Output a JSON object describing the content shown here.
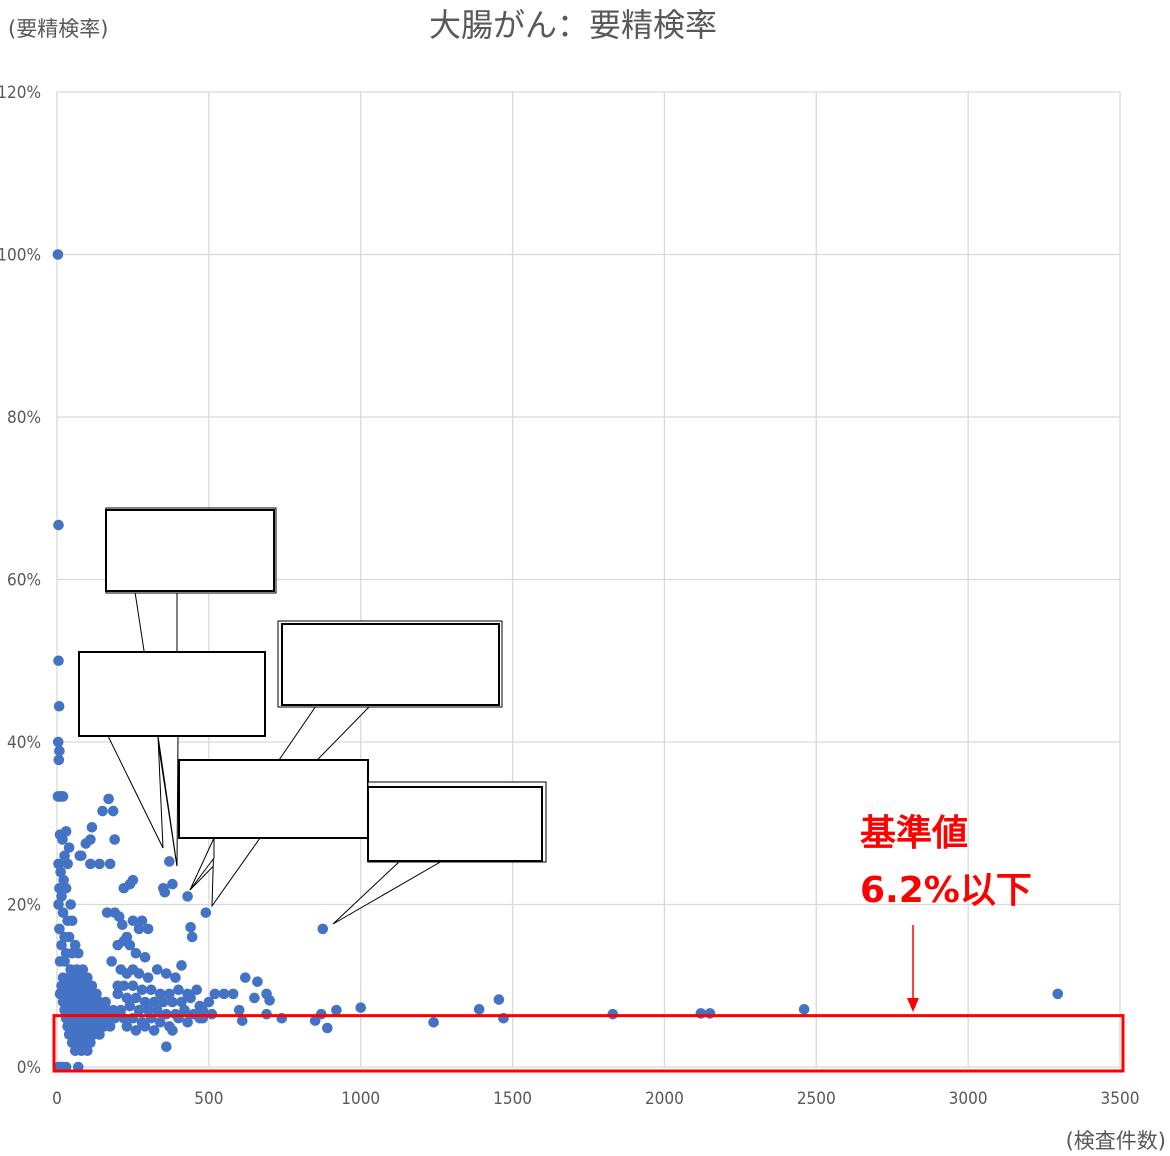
{
  "chart_data": {
    "type": "scatter",
    "title": "大腸がん：要精検率",
    "ylabel": "(要精検率)",
    "xlabel": "(検査件数)",
    "xlim": [
      0,
      3500
    ],
    "ylim": [
      0,
      1.2
    ],
    "x_ticks": [
      "0",
      "500",
      "1000",
      "1500",
      "2000",
      "2500",
      "3000",
      "3500"
    ],
    "y_ticks": [
      "0%",
      "20%",
      "40%",
      "60%",
      "80%",
      "100%",
      "120%"
    ],
    "grid": true,
    "marker_color": "#4472C4",
    "reference": {
      "label_line1": "基準値",
      "label_line2": "6.2%以下",
      "value": 0.062,
      "color": "#FF0000"
    },
    "points": [
      [
        3,
        1.0
      ],
      [
        5,
        0.667
      ],
      [
        5,
        0.5
      ],
      [
        7,
        0.444
      ],
      [
        4,
        0.4
      ],
      [
        8,
        0.389
      ],
      [
        6,
        0.378
      ],
      [
        3,
        0.333
      ],
      [
        10,
        0.333
      ],
      [
        15,
        0.333
      ],
      [
        20,
        0.333
      ],
      [
        10,
        0.286
      ],
      [
        18,
        0.28
      ],
      [
        30,
        0.29
      ],
      [
        40,
        0.27
      ],
      [
        25,
        0.26
      ],
      [
        35,
        0.25
      ],
      [
        5,
        0.25
      ],
      [
        12,
        0.24
      ],
      [
        22,
        0.23
      ],
      [
        8,
        0.22
      ],
      [
        30,
        0.22
      ],
      [
        15,
        0.21
      ],
      [
        45,
        0.2
      ],
      [
        5,
        0.2
      ],
      [
        20,
        0.19
      ],
      [
        35,
        0.18
      ],
      [
        50,
        0.18
      ],
      [
        8,
        0.17
      ],
      [
        25,
        0.16
      ],
      [
        40,
        0.16
      ],
      [
        60,
        0.15
      ],
      [
        15,
        0.15
      ],
      [
        30,
        0.14
      ],
      [
        50,
        0.14
      ],
      [
        70,
        0.14
      ],
      [
        10,
        0.13
      ],
      [
        25,
        0.13
      ],
      [
        45,
        0.12
      ],
      [
        65,
        0.12
      ],
      [
        85,
        0.12
      ],
      [
        20,
        0.11
      ],
      [
        40,
        0.11
      ],
      [
        60,
        0.11
      ],
      [
        80,
        0.11
      ],
      [
        100,
        0.11
      ],
      [
        15,
        0.1
      ],
      [
        35,
        0.1
      ],
      [
        55,
        0.1
      ],
      [
        75,
        0.1
      ],
      [
        95,
        0.1
      ],
      [
        115,
        0.1
      ],
      [
        10,
        0.09
      ],
      [
        30,
        0.09
      ],
      [
        50,
        0.09
      ],
      [
        70,
        0.09
      ],
      [
        90,
        0.09
      ],
      [
        110,
        0.09
      ],
      [
        130,
        0.09
      ],
      [
        20,
        0.08
      ],
      [
        40,
        0.08
      ],
      [
        60,
        0.08
      ],
      [
        80,
        0.08
      ],
      [
        100,
        0.08
      ],
      [
        120,
        0.08
      ],
      [
        140,
        0.08
      ],
      [
        160,
        0.08
      ],
      [
        25,
        0.07
      ],
      [
        45,
        0.07
      ],
      [
        65,
        0.07
      ],
      [
        85,
        0.07
      ],
      [
        105,
        0.07
      ],
      [
        125,
        0.07
      ],
      [
        145,
        0.07
      ],
      [
        165,
        0.07
      ],
      [
        185,
        0.07
      ],
      [
        30,
        0.06
      ],
      [
        50,
        0.06
      ],
      [
        70,
        0.06
      ],
      [
        90,
        0.06
      ],
      [
        110,
        0.06
      ],
      [
        130,
        0.06
      ],
      [
        150,
        0.06
      ],
      [
        170,
        0.06
      ],
      [
        190,
        0.06
      ],
      [
        35,
        0.05
      ],
      [
        55,
        0.05
      ],
      [
        75,
        0.05
      ],
      [
        95,
        0.05
      ],
      [
        115,
        0.05
      ],
      [
        135,
        0.05
      ],
      [
        155,
        0.05
      ],
      [
        175,
        0.05
      ],
      [
        40,
        0.04
      ],
      [
        60,
        0.04
      ],
      [
        80,
        0.04
      ],
      [
        100,
        0.04
      ],
      [
        120,
        0.04
      ],
      [
        140,
        0.04
      ],
      [
        50,
        0.03
      ],
      [
        70,
        0.03
      ],
      [
        90,
        0.03
      ],
      [
        110,
        0.03
      ],
      [
        60,
        0.02
      ],
      [
        80,
        0.02
      ],
      [
        100,
        0.02
      ],
      [
        20,
        0.0
      ],
      [
        10,
        0.0
      ],
      [
        30,
        0.0
      ],
      [
        70,
        0.0
      ],
      [
        5,
        0.0
      ],
      [
        80,
        0.26
      ],
      [
        95,
        0.275
      ],
      [
        110,
        0.28
      ],
      [
        115,
        0.295
      ],
      [
        150,
        0.315
      ],
      [
        170,
        0.33
      ],
      [
        185,
        0.315
      ],
      [
        190,
        0.28
      ],
      [
        175,
        0.25
      ],
      [
        140,
        0.25
      ],
      [
        110,
        0.25
      ],
      [
        75,
        0.26
      ],
      [
        165,
        0.19
      ],
      [
        190,
        0.19
      ],
      [
        205,
        0.185
      ],
      [
        215,
        0.175
      ],
      [
        230,
        0.16
      ],
      [
        250,
        0.18
      ],
      [
        270,
        0.17
      ],
      [
        280,
        0.18
      ],
      [
        300,
        0.17
      ],
      [
        220,
        0.22
      ],
      [
        240,
        0.225
      ],
      [
        250,
        0.23
      ],
      [
        350,
        0.22
      ],
      [
        355,
        0.215
      ],
      [
        380,
        0.225
      ],
      [
        370,
        0.253
      ],
      [
        430,
        0.21
      ],
      [
        440,
        0.172
      ],
      [
        445,
        0.16
      ],
      [
        490,
        0.19
      ],
      [
        875,
        0.17
      ],
      [
        200,
        0.15
      ],
      [
        220,
        0.155
      ],
      [
        240,
        0.15
      ],
      [
        260,
        0.14
      ],
      [
        290,
        0.135
      ],
      [
        180,
        0.13
      ],
      [
        210,
        0.12
      ],
      [
        230,
        0.115
      ],
      [
        250,
        0.12
      ],
      [
        270,
        0.115
      ],
      [
        300,
        0.11
      ],
      [
        330,
        0.12
      ],
      [
        360,
        0.115
      ],
      [
        390,
        0.11
      ],
      [
        410,
        0.125
      ],
      [
        200,
        0.1
      ],
      [
        220,
        0.1
      ],
      [
        250,
        0.1
      ],
      [
        280,
        0.095
      ],
      [
        310,
        0.095
      ],
      [
        340,
        0.09
      ],
      [
        370,
        0.09
      ],
      [
        400,
        0.095
      ],
      [
        430,
        0.09
      ],
      [
        460,
        0.095
      ],
      [
        200,
        0.09
      ],
      [
        230,
        0.085
      ],
      [
        260,
        0.085
      ],
      [
        290,
        0.08
      ],
      [
        320,
        0.08
      ],
      [
        350,
        0.08
      ],
      [
        380,
        0.08
      ],
      [
        410,
        0.08
      ],
      [
        440,
        0.085
      ],
      [
        470,
        0.075
      ],
      [
        500,
        0.08
      ],
      [
        210,
        0.07
      ],
      [
        240,
        0.075
      ],
      [
        270,
        0.07
      ],
      [
        300,
        0.07
      ],
      [
        330,
        0.07
      ],
      [
        360,
        0.065
      ],
      [
        390,
        0.065
      ],
      [
        420,
        0.07
      ],
      [
        450,
        0.065
      ],
      [
        480,
        0.07
      ],
      [
        220,
        0.06
      ],
      [
        250,
        0.06
      ],
      [
        280,
        0.055
      ],
      [
        310,
        0.06
      ],
      [
        340,
        0.055
      ],
      [
        370,
        0.05
      ],
      [
        400,
        0.06
      ],
      [
        430,
        0.055
      ],
      [
        470,
        0.06
      ],
      [
        510,
        0.065
      ],
      [
        230,
        0.05
      ],
      [
        260,
        0.045
      ],
      [
        290,
        0.05
      ],
      [
        320,
        0.045
      ],
      [
        380,
        0.045
      ],
      [
        360,
        0.025
      ],
      [
        480,
        0.06
      ],
      [
        520,
        0.09
      ],
      [
        550,
        0.09
      ],
      [
        580,
        0.09
      ],
      [
        620,
        0.11
      ],
      [
        660,
        0.105
      ],
      [
        690,
        0.09
      ],
      [
        700,
        0.082
      ],
      [
        650,
        0.085
      ],
      [
        600,
        0.07
      ],
      [
        690,
        0.065
      ],
      [
        740,
        0.06
      ],
      [
        610,
        0.057
      ],
      [
        850,
        0.057
      ],
      [
        870,
        0.065
      ],
      [
        890,
        0.048
      ],
      [
        920,
        0.07
      ],
      [
        1000,
        0.073
      ],
      [
        1240,
        0.055
      ],
      [
        1390,
        0.071
      ],
      [
        1455,
        0.083
      ],
      [
        1470,
        0.06
      ],
      [
        1830,
        0.065
      ],
      [
        2120,
        0.066
      ],
      [
        2150,
        0.066
      ],
      [
        2460,
        0.071
      ],
      [
        3295,
        0.09
      ]
    ]
  }
}
